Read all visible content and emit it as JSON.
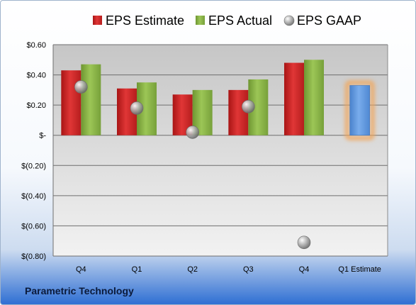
{
  "company_name": "Parametric Technology",
  "chart_data": {
    "type": "bar",
    "categories": [
      "Q4",
      "Q1",
      "Q2",
      "Q3",
      "Q4",
      "Q1 Estimate"
    ],
    "series": [
      {
        "name": "EPS Estimate",
        "color": "#d42626",
        "values": [
          0.43,
          0.31,
          0.27,
          0.3,
          0.48,
          null
        ]
      },
      {
        "name": "EPS Actual",
        "color": "#8db845",
        "values": [
          0.47,
          0.35,
          0.3,
          0.37,
          0.5,
          null
        ]
      },
      {
        "name": "EPS GAAP",
        "color": "#a6a6a6",
        "marker": "sphere",
        "values": [
          0.32,
          0.18,
          0.02,
          0.19,
          -0.71,
          null
        ]
      }
    ],
    "estimate": {
      "category": "Q1 Estimate",
      "value": 0.33,
      "color": "#5f96db",
      "glow": "#f2a65a"
    },
    "ylim": [
      -0.8,
      0.6
    ],
    "yticks": [
      0.6,
      0.4,
      0.2,
      0,
      -0.2,
      -0.4,
      -0.6,
      -0.8
    ],
    "ytick_labels": [
      "$0.60",
      "$0.40",
      "$0.20",
      "$-",
      "$(0.20)",
      "$(0.40)",
      "$(0.60)",
      "$(0.80)"
    ],
    "grid": true,
    "legend": "top"
  }
}
